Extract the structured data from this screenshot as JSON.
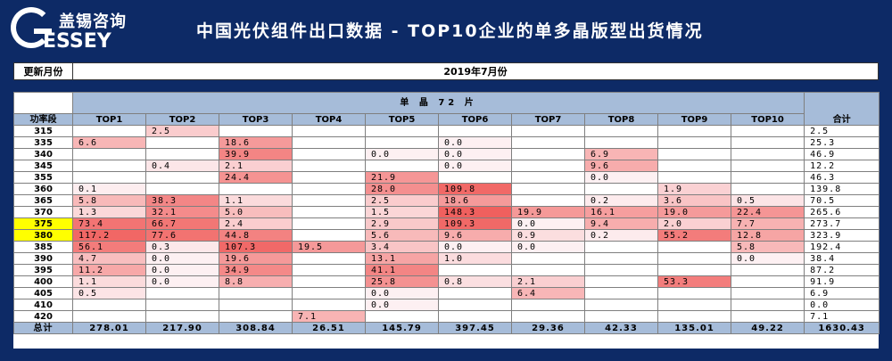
{
  "brand": {
    "cn": "盖锡咨询",
    "en": "ESSEY",
    "g": "G"
  },
  "title": "中国光伏组件出口数据 - TOP10企业的单多晶版型出货情况",
  "update": {
    "label": "更新月份",
    "value": "2019年7月份"
  },
  "table": {
    "group_header": "单 晶 72 片",
    "power_col": "功率段",
    "sum_col": "合计",
    "columns": [
      "TOP1",
      "TOP2",
      "TOP3",
      "TOP4",
      "TOP5",
      "TOP6",
      "TOP7",
      "TOP8",
      "TOP9",
      "TOP10"
    ],
    "rows": [
      {
        "power": "315",
        "highlight": false,
        "cells": [
          "",
          "2.5",
          "",
          "",
          "",
          "",
          "",
          "",
          "",
          ""
        ],
        "total": "2.5"
      },
      {
        "power": "335",
        "highlight": false,
        "cells": [
          "6.6",
          "",
          "18.6",
          "",
          "",
          "0.0",
          "",
          "",
          "",
          ""
        ],
        "total": "25.3"
      },
      {
        "power": "340",
        "highlight": false,
        "cells": [
          "",
          "",
          "39.9",
          "",
          "0.0",
          "0.0",
          "",
          "6.9",
          "",
          ""
        ],
        "total": "46.9"
      },
      {
        "power": "345",
        "highlight": false,
        "cells": [
          "",
          "0.4",
          "2.1",
          "",
          "",
          "0.0",
          "",
          "9.6",
          "",
          ""
        ],
        "total": "12.2"
      },
      {
        "power": "355",
        "highlight": false,
        "cells": [
          "",
          "",
          "24.4",
          "",
          "21.9",
          "",
          "",
          "0.0",
          "",
          ""
        ],
        "total": "46.3"
      },
      {
        "power": "360",
        "highlight": false,
        "cells": [
          "0.1",
          "",
          "",
          "",
          "28.0",
          "109.8",
          "",
          "",
          "1.9",
          ""
        ],
        "total": "139.8"
      },
      {
        "power": "365",
        "highlight": false,
        "cells": [
          "5.8",
          "38.3",
          "1.1",
          "",
          "2.5",
          "18.6",
          "",
          "0.2",
          "3.6",
          "0.5"
        ],
        "total": "70.5"
      },
      {
        "power": "370",
        "highlight": false,
        "cells": [
          "1.3",
          "32.1",
          "5.0",
          "",
          "1.5",
          "148.3",
          "19.9",
          "16.1",
          "19.0",
          "22.4"
        ],
        "total": "265.6"
      },
      {
        "power": "375",
        "highlight": true,
        "cells": [
          "73.4",
          "66.7",
          "2.4",
          "",
          "2.9",
          "109.3",
          "0.0",
          "9.4",
          "2.0",
          "7.7"
        ],
        "total": "273.7"
      },
      {
        "power": "380",
        "highlight": true,
        "cells": [
          "117.2",
          "77.6",
          "44.8",
          "",
          "5.6",
          "9.6",
          "0.9",
          "0.2",
          "55.2",
          "12.8"
        ],
        "total": "323.9"
      },
      {
        "power": "385",
        "highlight": false,
        "cells": [
          "56.1",
          "0.3",
          "107.3",
          "19.5",
          "3.4",
          "0.0",
          "0.0",
          "",
          "",
          "5.8"
        ],
        "total": "192.4"
      },
      {
        "power": "390",
        "highlight": false,
        "cells": [
          "4.7",
          "0.0",
          "19.6",
          "",
          "13.1",
          "1.0",
          "",
          "",
          "",
          "0.0"
        ],
        "total": "38.4"
      },
      {
        "power": "395",
        "highlight": false,
        "cells": [
          "11.2",
          "0.0",
          "34.9",
          "",
          "41.1",
          "",
          "",
          "",
          "",
          ""
        ],
        "total": "87.2"
      },
      {
        "power": "400",
        "highlight": false,
        "cells": [
          "1.1",
          "0.0",
          "8.8",
          "",
          "25.8",
          "0.8",
          "2.1",
          "",
          "53.3",
          ""
        ],
        "total": "91.9"
      },
      {
        "power": "405",
        "highlight": false,
        "cells": [
          "0.5",
          "",
          "",
          "",
          "0.0",
          "",
          "6.4",
          "",
          "",
          ""
        ],
        "total": "6.9"
      },
      {
        "power": "410",
        "highlight": false,
        "cells": [
          "",
          "",
          "",
          "",
          "0.0",
          "",
          "",
          "",
          "",
          ""
        ],
        "total": "0.0"
      },
      {
        "power": "420",
        "highlight": false,
        "cells": [
          "",
          "",
          "",
          "7.1",
          "",
          "",
          "",
          "",
          "",
          ""
        ],
        "total": "7.1"
      }
    ],
    "totals_label": "总计",
    "totals": [
      "278.01",
      "217.90",
      "308.84",
      "26.51",
      "145.79",
      "397.45",
      "29.36",
      "42.33",
      "135.01",
      "49.22"
    ],
    "grand_total": "1630.43"
  },
  "colors": {
    "background": "#0d2a66",
    "header": "#a6bcd9",
    "highlight": "#ffff00",
    "heat_max": "#f0605e"
  }
}
